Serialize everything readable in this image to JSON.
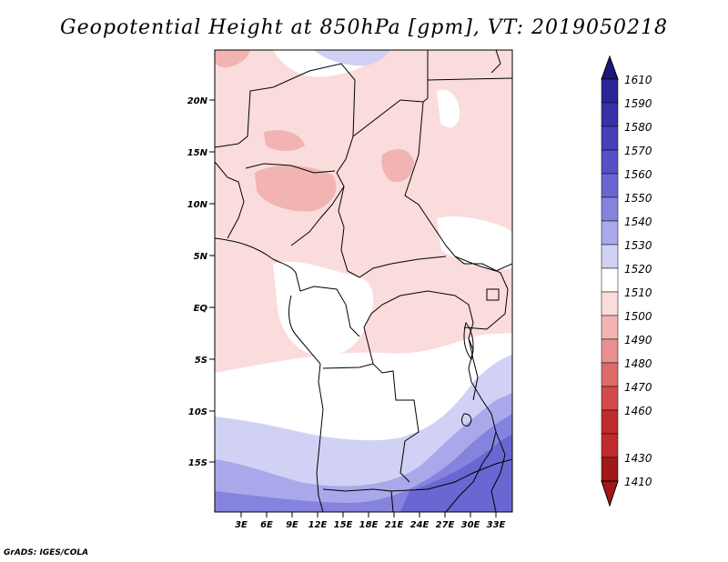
{
  "title": "Geopotential Height at 850hPa [gpm], VT: 2019050218",
  "footer": "GrADS: IGES/COLA",
  "map": {
    "lat_labels": [
      "20N",
      "15N",
      "10N",
      "5N",
      "EQ",
      "5S",
      "10S",
      "15S"
    ],
    "lon_labels": [
      "3E",
      "6E",
      "9E",
      "12E",
      "15E",
      "18E",
      "21E",
      "24E",
      "27E",
      "30E",
      "33E"
    ]
  },
  "colorbar": {
    "levels": [
      "1610",
      "1590",
      "1580",
      "1570",
      "1560",
      "1550",
      "1540",
      "1530",
      "1520",
      "1510",
      "1500",
      "1490",
      "1480",
      "1470",
      "1460",
      "1430",
      "1410"
    ],
    "colors": [
      "#1e1678",
      "#2a2594",
      "#3532a8",
      "#4541b8",
      "#5550c6",
      "#6a66d2",
      "#8683de",
      "#a9a8ea",
      "#d1d1f5",
      "#ffffff",
      "#fadcdc",
      "#f2b3b3",
      "#e89090",
      "#de6a6a",
      "#d24a4a",
      "#c02c2c",
      "#a01818"
    ]
  }
}
